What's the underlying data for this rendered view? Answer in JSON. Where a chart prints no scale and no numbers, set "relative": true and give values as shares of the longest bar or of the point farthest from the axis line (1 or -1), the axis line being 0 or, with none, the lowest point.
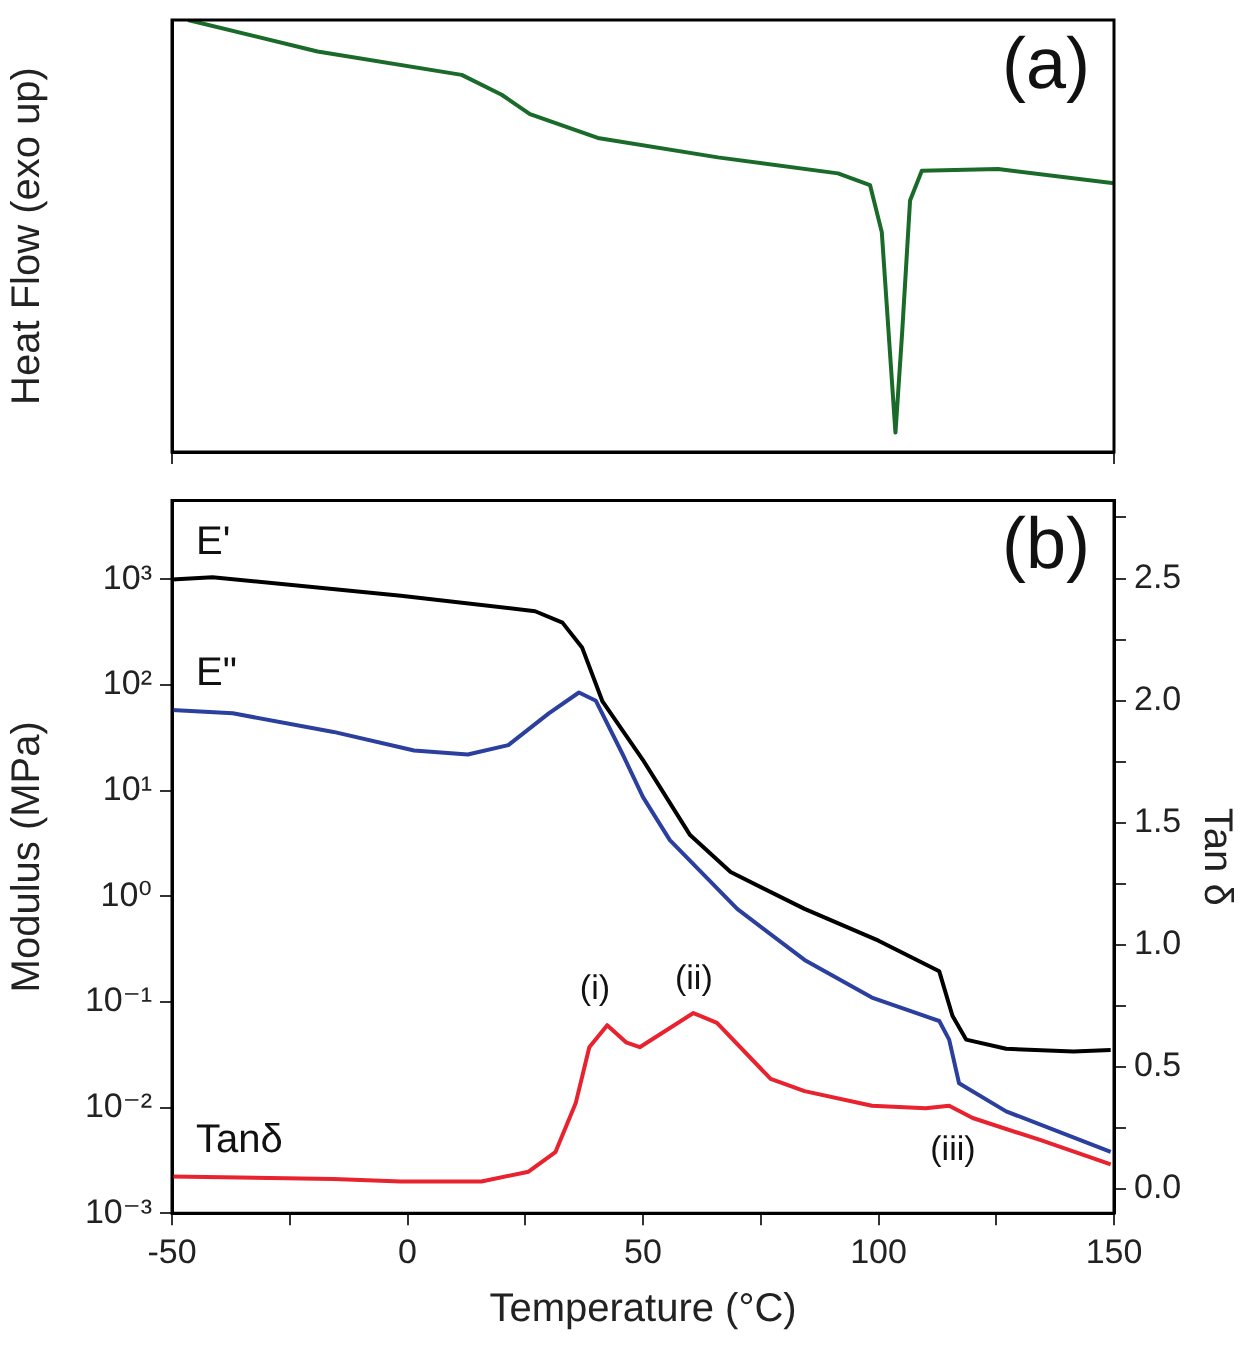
{
  "chart_data": [
    {
      "type": "line",
      "relative": true,
      "ylabel": "Heat Flow (exo up)",
      "annotations": [
        "(a)"
      ],
      "xlim": [
        -50,
        150
      ],
      "xticks": [
        -50,
        150
      ],
      "tick_labels": false,
      "color": "#1a6b2a",
      "x": [
        -46.6,
        -19.1,
        11.5,
        20.0,
        26.0,
        40.4,
        65.9,
        91.4,
        98.2,
        100.7,
        102.4,
        103.6,
        105.0,
        106.7,
        109.2,
        125.4,
        150
      ],
      "values": [
        1.0,
        0.927,
        0.873,
        0.827,
        0.782,
        0.727,
        0.682,
        0.645,
        0.618,
        0.509,
        0.236,
        0.045,
        0.273,
        0.582,
        0.651,
        0.655,
        0.622
      ]
    },
    {
      "type": "line",
      "xlabel": "Temperature (°C)",
      "ylabel": "Modulus (MPa)",
      "y2label": "Tan δ",
      "log": "y",
      "xlim": [
        -50,
        150
      ],
      "xticks": [
        -50,
        {
          "value": -25,
          "label": null
        },
        0,
        {
          "value": 25,
          "label": null
        },
        50,
        {
          "value": 75,
          "label": null
        },
        100,
        {
          "value": 125,
          "label": null
        },
        150
      ],
      "ylim": [
        0.001,
        5600
      ],
      "yticks": [
        {
          "value": 0.001,
          "label": "10⁻³"
        },
        {
          "value": 0.01,
          "label": "10⁻²"
        },
        {
          "value": 0.1,
          "label": "10⁻¹"
        },
        {
          "value": 1,
          "label": "10⁰"
        },
        {
          "value": 10,
          "label": "10¹"
        },
        {
          "value": 100,
          "label": "10²"
        },
        {
          "value": 1000,
          "label": "10³"
        }
      ],
      "y2lim": [
        -0.1,
        2.82
      ],
      "y2ticks": [
        {
          "value": 0,
          "label": "0.0"
        },
        {
          "value": 0.25,
          "label": null
        },
        {
          "value": 0.5,
          "label": "0.5"
        },
        {
          "value": 0.75,
          "label": null
        },
        {
          "value": 1,
          "label": "1.0"
        },
        {
          "value": 1.25,
          "label": null
        },
        {
          "value": 1.5,
          "label": "1.5"
        },
        {
          "value": 1.75,
          "label": null
        },
        {
          "value": 2,
          "label": "2.0"
        },
        {
          "value": 2.25,
          "label": null
        },
        {
          "value": 2.5,
          "label": "2.5"
        },
        {
          "value": 2.75,
          "label": null
        }
      ],
      "annotations": [
        "(b)",
        "(i)",
        "(ii)",
        "(iii)"
      ],
      "series": [
        {
          "name": "E'",
          "color": "#000000",
          "x": [
            -50,
            -41.4,
            -1.4,
            27.1,
            32.9,
            37.1,
            41.4,
            50,
            60,
            68.6,
            84.3,
            100,
            112.9,
            115.7,
            118.6,
            127.1,
            141.4,
            149.3
          ],
          "values": [
            1000,
            1050,
            700,
            500,
            390,
            225,
            70,
            19.5,
            3.8,
            1.7,
            0.76,
            0.38,
            0.195,
            0.074,
            0.044,
            0.036,
            0.034,
            0.035
          ]
        },
        {
          "name": "E\"",
          "color": "#2b3f9e",
          "x": [
            -50,
            -37.1,
            -15.7,
            1.4,
            12.8,
            21.4,
            30,
            36.4,
            40,
            45.7,
            50,
            55.7,
            70,
            84.3,
            98.6,
            112.9,
            115,
            117.1,
            127.1,
            149.3
          ],
          "values": [
            58,
            54,
            36,
            24,
            22,
            27,
            54,
            85,
            71,
            22,
            8.7,
            3.4,
            0.76,
            0.25,
            0.11,
            0.066,
            0.044,
            0.017,
            0.0092,
            0.0038
          ]
        },
        {
          "name": "Tanδ",
          "color": "#e8222e",
          "axis": "y2",
          "x": [
            -50,
            -15.7,
            -1.4,
            15.7,
            25.7,
            31.4,
            35.7,
            38.6,
            42.4,
            46.4,
            49.3,
            60.7,
            65.7,
            77.1,
            84.3,
            98.6,
            110,
            115,
            120,
            134.3,
            149.3
          ],
          "values": [
            0.05,
            0.04,
            0.03,
            0.03,
            0.07,
            0.15,
            0.35,
            0.58,
            0.67,
            0.6,
            0.58,
            0.72,
            0.68,
            0.45,
            0.4,
            0.34,
            0.33,
            0.34,
            0.29,
            0.2,
            0.1
          ]
        }
      ]
    }
  ]
}
